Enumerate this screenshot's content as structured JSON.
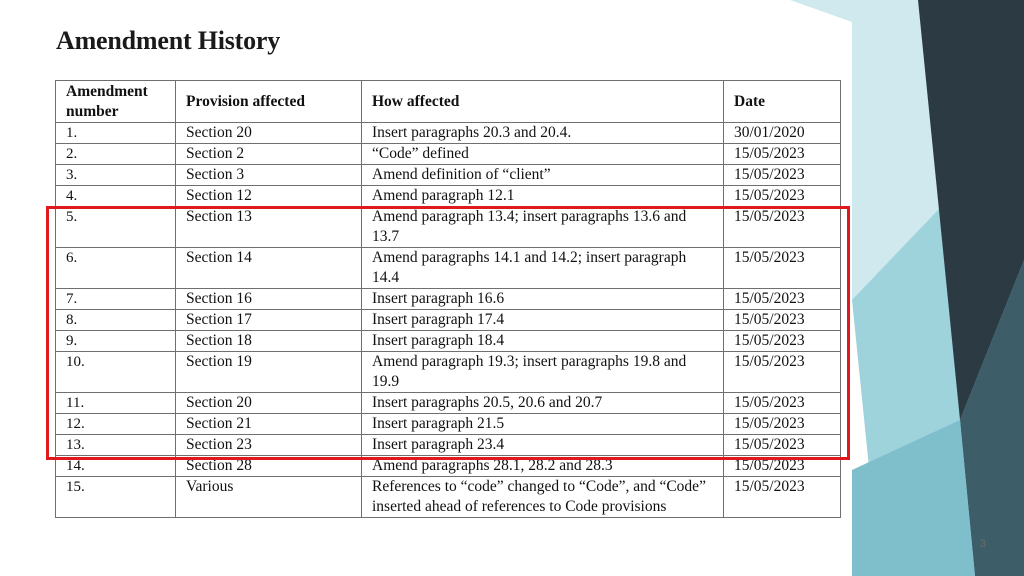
{
  "slide": {
    "title": "Amendment History",
    "page_number": "3"
  },
  "table": {
    "headers": [
      "Amendment number",
      "Provision affected",
      "How affected",
      "Date"
    ],
    "rows": [
      [
        "1.",
        "Section 20",
        "Insert paragraphs 20.3 and 20.4.",
        "30/01/2020"
      ],
      [
        "2.",
        "Section 2",
        "“Code” defined",
        "15/05/2023"
      ],
      [
        "3.",
        "Section 3",
        "Amend definition of “client”",
        "15/05/2023"
      ],
      [
        "4.",
        "Section 12",
        "Amend paragraph 12.1",
        "15/05/2023"
      ],
      [
        "5.",
        "Section 13",
        "Amend paragraph 13.4; insert paragraphs 13.6 and 13.7",
        "15/05/2023"
      ],
      [
        "6.",
        "Section 14",
        "Amend paragraphs 14.1 and 14.2; insert paragraph 14.4",
        "15/05/2023"
      ],
      [
        "7.",
        "Section 16",
        "Insert paragraph 16.6",
        "15/05/2023"
      ],
      [
        "8.",
        "Section 17",
        "Insert paragraph 17.4",
        "15/05/2023"
      ],
      [
        "9.",
        "Section 18",
        "Insert paragraph 18.4",
        "15/05/2023"
      ],
      [
        "10.",
        "Section 19",
        "Amend paragraph 19.3; insert paragraphs 19.8 and 19.9",
        "15/05/2023"
      ],
      [
        "11.",
        "Section 20",
        "Insert paragraphs 20.5, 20.6 and 20.7",
        "15/05/2023"
      ],
      [
        "12.",
        "Section 21",
        "Insert paragraph 21.5",
        "15/05/2023"
      ],
      [
        "13.",
        "Section 23",
        "Insert paragraph 23.4",
        "15/05/2023"
      ],
      [
        "14.",
        "Section 28",
        "Amend paragraphs 28.1, 28.2 and 28.3",
        "15/05/2023"
      ],
      [
        "15.",
        "Various",
        "References to “code” changed to “Code”, and “Code” inserted ahead of references to Code provisions",
        "15/05/2023"
      ]
    ]
  },
  "highlight": {
    "color": "#e0191f",
    "rows_covered": [
      "5.",
      "6.",
      "7.",
      "8.",
      "9.",
      "10.",
      "11.",
      "12.",
      "13."
    ]
  },
  "theme": {
    "decor_colors": [
      "#9fd3dc",
      "#7fbfcb",
      "#5c8d96",
      "#3d5e68",
      "#2b3a43",
      "#cfe9ee"
    ]
  }
}
